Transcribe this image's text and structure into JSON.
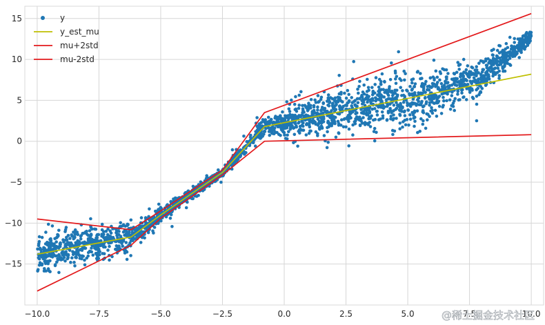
{
  "chart_data": {
    "type": "scatter",
    "title": "",
    "xlabel": "",
    "ylabel": "",
    "xlim": [
      -10.5,
      10.5
    ],
    "ylim": [
      -20,
      16.5
    ],
    "grid": true,
    "legend_position": "top-left",
    "x_ticks": [
      -10.0,
      -7.5,
      -5.0,
      -2.5,
      0.0,
      2.5,
      5.0,
      7.5,
      10.0
    ],
    "x_tick_labels": [
      "−10.0",
      "−7.5",
      "−5.0",
      "−2.5",
      "0.0",
      "2.5",
      "5.0",
      "7.5",
      "10.0"
    ],
    "y_ticks": [
      -15,
      -10,
      -5,
      0,
      5,
      10,
      15
    ],
    "y_tick_labels": [
      "−15",
      "−10",
      "−5",
      "0",
      "5",
      "10",
      "15"
    ],
    "series": [
      {
        "name": "y",
        "kind": "scatter",
        "color": "#1f77b4",
        "description_points": [
          [
            -10,
            -14
          ],
          [
            -10,
            -16.5
          ],
          [
            -10,
            -9.2
          ],
          [
            -9,
            -12.2
          ],
          [
            -8,
            -12.5
          ],
          [
            -7,
            -12
          ],
          [
            -6.2,
            -11
          ],
          [
            -5,
            -9
          ],
          [
            -3,
            -5
          ],
          [
            -2,
            -2.5
          ],
          [
            -1,
            1.3
          ],
          [
            0,
            2
          ],
          [
            1,
            3
          ],
          [
            2.5,
            3.5
          ],
          [
            5,
            4
          ],
          [
            7.5,
            8
          ],
          [
            9,
            11
          ],
          [
            10,
            13
          ]
        ]
      },
      {
        "name": "y_est_mu",
        "kind": "line",
        "color": "#bfbf00",
        "x": [
          -10,
          -6.2,
          -5.0,
          -2.5,
          -0.8,
          10
        ],
        "y": [
          -13.8,
          -11.7,
          -9.0,
          -3.8,
          1.8,
          8.2
        ]
      },
      {
        "name": "mu+2std",
        "kind": "line",
        "color": "#e31a1c",
        "x": [
          -10,
          -6.2,
          -5.0,
          -2.5,
          -0.8,
          10
        ],
        "y": [
          -9.5,
          -10.8,
          -8.5,
          -3.5,
          3.5,
          15.6
        ]
      },
      {
        "name": "mu-2std",
        "kind": "line",
        "color": "#e31a1c",
        "x": [
          -10,
          -6.2,
          -5.0,
          -2.5,
          -0.8,
          10
        ],
        "y": [
          -18.3,
          -12.7,
          -9.4,
          -4.1,
          0.0,
          0.8
        ]
      }
    ]
  },
  "watermark": "@稀土掘金技术社区"
}
